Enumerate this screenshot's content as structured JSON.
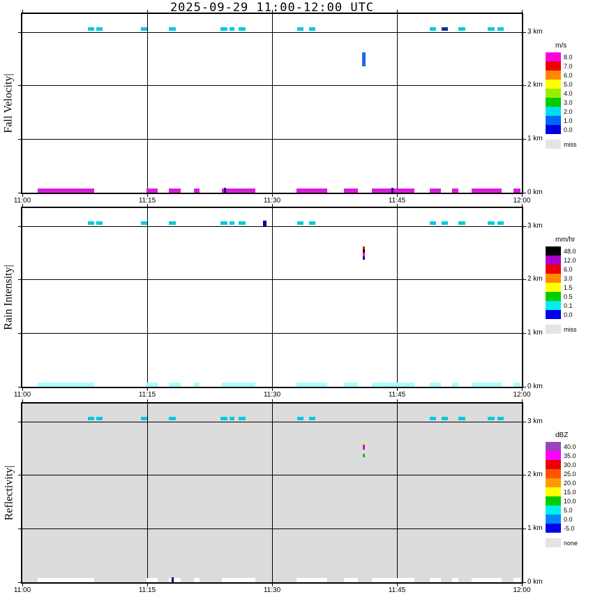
{
  "title": "2025-09-29  11:00-12:00 UTC",
  "x_axis": {
    "ticks": [
      "11:00",
      "11:15",
      "11:30",
      "11:45",
      "12:00"
    ],
    "tick_minutes": [
      0,
      15,
      30,
      45,
      60
    ],
    "grid_minutes": [
      15,
      30,
      45
    ]
  },
  "y_axis": {
    "labels": [
      "0 km",
      "1 km",
      "2 km",
      "3 km"
    ],
    "tick_km": [
      0,
      1,
      2,
      3
    ],
    "grid_km": [
      1,
      2,
      3
    ],
    "max_km": 3.333
  },
  "chart_data": [
    {
      "type": "heatmap",
      "name": "fall_velocity",
      "ylabel": "Fall Velocity|",
      "unit": "m/s",
      "background": "#ffffff",
      "x_range_minutes": [
        0,
        60
      ],
      "y_range_km": [
        0,
        3.333
      ],
      "notes": "Scattered cloud echoes near 3 km; brief precipitation streak ~11:41 UTC at 2.3-2.6 km (~1 m/s); surface echoes along 0 km.",
      "colorbar": {
        "unit": "m/s",
        "entries": [
          {
            "label": "8.0",
            "color": "#ff00dd"
          },
          {
            "label": "7.0",
            "color": "#ee0000"
          },
          {
            "label": "6.0",
            "color": "#ff8800"
          },
          {
            "label": "5.0",
            "color": "#ffff00"
          },
          {
            "label": "4.0",
            "color": "#99ee00"
          },
          {
            "label": "3.0",
            "color": "#00cc00"
          },
          {
            "label": "2.0",
            "color": "#00ddee"
          },
          {
            "label": "1.0",
            "color": "#0066ff"
          },
          {
            "label": "0.0",
            "color": "#0000dd"
          }
        ],
        "missing": {
          "label": "miss",
          "color": "#e4e4e4"
        }
      },
      "mark_format": [
        "t0_min",
        "t1_min",
        "h0_km",
        "h1_km",
        "color"
      ],
      "marks": [
        [
          7.9,
          8.6,
          3.02,
          3.08,
          "#00ccdd"
        ],
        [
          8.9,
          9.6,
          3.02,
          3.08,
          "#00ccdd"
        ],
        [
          14.2,
          15.0,
          3.02,
          3.08,
          "#00ccdd"
        ],
        [
          17.6,
          18.4,
          3.02,
          3.08,
          "#00ccdd"
        ],
        [
          23.8,
          24.6,
          3.02,
          3.08,
          "#00ccdd"
        ],
        [
          24.9,
          25.5,
          3.02,
          3.08,
          "#00ccdd"
        ],
        [
          26.0,
          26.8,
          3.02,
          3.08,
          "#00ccdd"
        ],
        [
          33.0,
          33.8,
          3.02,
          3.08,
          "#00ccdd"
        ],
        [
          34.4,
          35.2,
          3.02,
          3.08,
          "#00ccdd"
        ],
        [
          48.9,
          49.7,
          3.02,
          3.08,
          "#00ccdd"
        ],
        [
          50.4,
          51.1,
          3.02,
          3.08,
          "#003399"
        ],
        [
          52.4,
          53.2,
          3.02,
          3.08,
          "#00ccdd"
        ],
        [
          55.9,
          56.7,
          3.02,
          3.08,
          "#00ccdd"
        ],
        [
          57.1,
          57.8,
          3.02,
          3.08,
          "#00ccdd"
        ],
        [
          40.8,
          41.2,
          2.35,
          2.62,
          "#2266ee"
        ],
        [
          1.8,
          8.6,
          0,
          0.08,
          "#d81ed8"
        ],
        [
          14.9,
          16.3,
          0,
          0.08,
          "#d81ed8"
        ],
        [
          17.6,
          19.0,
          0,
          0.08,
          "#d81ed8"
        ],
        [
          20.6,
          21.3,
          0,
          0.08,
          "#d81ed8"
        ],
        [
          24.0,
          28.0,
          0,
          0.08,
          "#d81ed8"
        ],
        [
          32.9,
          36.6,
          0,
          0.08,
          "#d81ed8"
        ],
        [
          38.6,
          40.3,
          0,
          0.08,
          "#d81ed8"
        ],
        [
          42.0,
          47.1,
          0,
          0.08,
          "#d81ed8"
        ],
        [
          48.9,
          50.3,
          0,
          0.08,
          "#d81ed8"
        ],
        [
          51.6,
          52.4,
          0,
          0.08,
          "#d81ed8"
        ],
        [
          54.0,
          57.6,
          0,
          0.08,
          "#d81ed8"
        ],
        [
          59.0,
          59.8,
          0,
          0.08,
          "#d81ed8"
        ],
        [
          24.2,
          24.5,
          0,
          0.09,
          "#220099"
        ],
        [
          44.3,
          44.6,
          0,
          0.09,
          "#220099"
        ]
      ]
    },
    {
      "type": "heatmap",
      "name": "rain_intensity",
      "ylabel": "Rain Intensity|",
      "unit": "mm/hr",
      "background": "#ffffff",
      "x_range_minutes": [
        0,
        60
      ],
      "y_range_km": [
        0,
        3.333
      ],
      "notes": "Scattered cloud echoes near 3 km; brief intense streak ~11:41 UTC at 2.4-2.6 km (up to 48 mm/hr); light surface echoes along 0 km.",
      "colorbar": {
        "unit": "mm/hr",
        "entries": [
          {
            "label": "48.0",
            "color": "#000000"
          },
          {
            "label": "12.0",
            "color": "#aa00cc"
          },
          {
            "label": "6.0",
            "color": "#ee0000"
          },
          {
            "label": "3.0",
            "color": "#ff8800"
          },
          {
            "label": "1.5",
            "color": "#ffff00"
          },
          {
            "label": "0.5",
            "color": "#00cc00"
          },
          {
            "label": "0.1",
            "color": "#00eeee"
          },
          {
            "label": "0.0",
            "color": "#0000ee"
          }
        ],
        "missing": {
          "label": "miss",
          "color": "#e4e4e4"
        }
      },
      "mark_format": [
        "t0_min",
        "t1_min",
        "h0_km",
        "h1_km",
        "color"
      ],
      "marks": [
        [
          7.9,
          8.6,
          3.02,
          3.08,
          "#00ccdd"
        ],
        [
          8.9,
          9.6,
          3.02,
          3.08,
          "#00ccdd"
        ],
        [
          14.2,
          15.0,
          3.02,
          3.08,
          "#00ccdd"
        ],
        [
          17.6,
          18.4,
          3.02,
          3.08,
          "#00ccdd"
        ],
        [
          23.8,
          24.6,
          3.02,
          3.08,
          "#00ccdd"
        ],
        [
          24.9,
          25.5,
          3.02,
          3.08,
          "#00ccdd"
        ],
        [
          26.0,
          26.8,
          3.02,
          3.08,
          "#00ccdd"
        ],
        [
          28.9,
          29.3,
          3.0,
          3.1,
          "#000099"
        ],
        [
          33.0,
          33.8,
          3.02,
          3.08,
          "#00ccdd"
        ],
        [
          34.4,
          35.2,
          3.02,
          3.08,
          "#00ccdd"
        ],
        [
          48.9,
          49.7,
          3.02,
          3.08,
          "#00ccdd"
        ],
        [
          50.4,
          51.1,
          3.02,
          3.08,
          "#00ccdd"
        ],
        [
          52.4,
          53.2,
          3.02,
          3.08,
          "#00ccdd"
        ],
        [
          55.9,
          56.7,
          3.02,
          3.08,
          "#00ccdd"
        ],
        [
          57.1,
          57.8,
          3.02,
          3.08,
          "#00ccdd"
        ],
        [
          40.85,
          41.15,
          2.56,
          2.62,
          "#ee0000"
        ],
        [
          40.85,
          41.15,
          2.5,
          2.56,
          "#000000"
        ],
        [
          40.85,
          41.15,
          2.44,
          2.5,
          "#ff00bb"
        ],
        [
          40.85,
          41.15,
          2.37,
          2.43,
          "#0000cc"
        ],
        [
          1.8,
          8.6,
          0,
          0.08,
          "#a8ffff"
        ],
        [
          14.9,
          16.3,
          0,
          0.08,
          "#a8ffff"
        ],
        [
          17.6,
          19.0,
          0,
          0.08,
          "#a8ffff"
        ],
        [
          20.6,
          21.3,
          0,
          0.08,
          "#a8ffff"
        ],
        [
          24.0,
          28.0,
          0,
          0.08,
          "#a8ffff"
        ],
        [
          32.9,
          36.6,
          0,
          0.08,
          "#a8ffff"
        ],
        [
          38.6,
          40.3,
          0,
          0.08,
          "#a8ffff"
        ],
        [
          42.0,
          47.1,
          0,
          0.08,
          "#a8ffff"
        ],
        [
          48.9,
          50.3,
          0,
          0.08,
          "#a8ffff"
        ],
        [
          51.6,
          52.4,
          0,
          0.08,
          "#a8ffff"
        ],
        [
          54.0,
          57.6,
          0,
          0.08,
          "#a8ffff"
        ],
        [
          59.0,
          59.8,
          0,
          0.08,
          "#a8ffff"
        ]
      ]
    },
    {
      "type": "heatmap",
      "name": "reflectivity",
      "ylabel": "Reflectivity|",
      "unit": "dBZ",
      "background": "#dcdcdc",
      "x_range_minutes": [
        0,
        60
      ],
      "y_range_km": [
        0,
        3.333
      ],
      "notes": "Background is 'none' (gray); scattered cloud echoes near 3 km; streak ~11:41 UTC at 2.3-2.6 km (yellow/magenta/green); white surface echoes along 0 km.",
      "colorbar": {
        "unit": "dBZ",
        "entries": [
          {
            "label": "40.0",
            "color": "#9944bb"
          },
          {
            "label": "35.0",
            "color": "#ff00ff"
          },
          {
            "label": "30.0",
            "color": "#ee0000"
          },
          {
            "label": "25.0",
            "color": "#ff5500"
          },
          {
            "label": "20.0",
            "color": "#ff9900"
          },
          {
            "label": "15.0",
            "color": "#ffff00"
          },
          {
            "label": "10.0",
            "color": "#00cc00"
          },
          {
            "label": "5.0",
            "color": "#00eeee"
          },
          {
            "label": "0.0",
            "color": "#0088ff"
          },
          {
            "label": "-5.0",
            "color": "#0000ee"
          }
        ],
        "missing": {
          "label": "none",
          "color": "#e4e4e4"
        }
      },
      "mark_format": [
        "t0_min",
        "t1_min",
        "h0_km",
        "h1_km",
        "color"
      ],
      "marks": [
        [
          7.9,
          8.6,
          3.02,
          3.08,
          "#00ccdd"
        ],
        [
          8.9,
          9.6,
          3.02,
          3.08,
          "#00ccdd"
        ],
        [
          14.2,
          15.0,
          3.02,
          3.08,
          "#00ccdd"
        ],
        [
          17.6,
          18.4,
          3.02,
          3.08,
          "#00ccdd"
        ],
        [
          23.8,
          24.6,
          3.02,
          3.08,
          "#00ccdd"
        ],
        [
          24.9,
          25.5,
          3.02,
          3.08,
          "#00ccdd"
        ],
        [
          26.0,
          26.8,
          3.02,
          3.08,
          "#00ccdd"
        ],
        [
          33.0,
          33.8,
          3.02,
          3.08,
          "#00ccdd"
        ],
        [
          34.4,
          35.2,
          3.02,
          3.08,
          "#00ccdd"
        ],
        [
          48.9,
          49.7,
          3.02,
          3.08,
          "#00ccdd"
        ],
        [
          50.4,
          51.1,
          3.02,
          3.08,
          "#00ccdd"
        ],
        [
          52.4,
          53.2,
          3.02,
          3.08,
          "#00ccdd"
        ],
        [
          55.9,
          56.7,
          3.02,
          3.08,
          "#00ccdd"
        ],
        [
          57.1,
          57.8,
          3.02,
          3.08,
          "#00ccdd"
        ],
        [
          40.85,
          41.15,
          2.57,
          2.62,
          "#ffee00"
        ],
        [
          40.85,
          41.15,
          2.47,
          2.57,
          "#cc00cc"
        ],
        [
          40.85,
          41.15,
          2.33,
          2.39,
          "#00cc00"
        ],
        [
          1.8,
          8.6,
          0,
          0.08,
          "#ffffff"
        ],
        [
          14.9,
          16.3,
          0,
          0.08,
          "#ffffff"
        ],
        [
          17.6,
          19.0,
          0,
          0.08,
          "#ffffff"
        ],
        [
          20.6,
          21.3,
          0,
          0.08,
          "#ffffff"
        ],
        [
          24.0,
          28.0,
          0,
          0.08,
          "#ffffff"
        ],
        [
          32.9,
          36.6,
          0,
          0.08,
          "#ffffff"
        ],
        [
          38.6,
          40.3,
          0,
          0.08,
          "#ffffff"
        ],
        [
          42.0,
          47.1,
          0,
          0.08,
          "#ffffff"
        ],
        [
          48.9,
          50.3,
          0,
          0.08,
          "#ffffff"
        ],
        [
          51.6,
          52.4,
          0,
          0.08,
          "#ffffff"
        ],
        [
          54.0,
          57.6,
          0,
          0.08,
          "#ffffff"
        ],
        [
          59.0,
          59.8,
          0,
          0.08,
          "#ffffff"
        ],
        [
          17.9,
          18.2,
          0,
          0.09,
          "#000077"
        ]
      ]
    }
  ]
}
